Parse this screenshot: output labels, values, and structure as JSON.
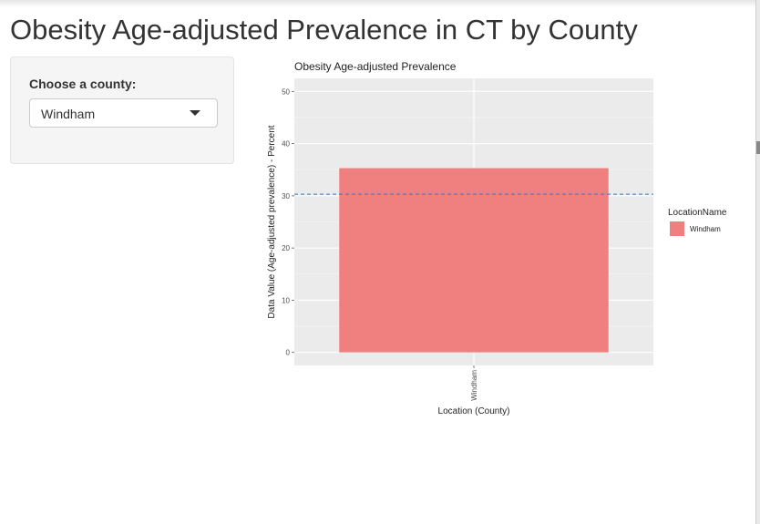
{
  "page": {
    "title": "Obesity Age-adjusted Prevalence in CT by County"
  },
  "sidebar": {
    "label": "Choose a county:",
    "selected": "Windham"
  },
  "chart_data": {
    "type": "bar",
    "title": "Obesity Age-adjusted Prevalence",
    "xlabel": "Location (County)",
    "ylabel": "Data Value (Age-adjusted prevalence) - Percent",
    "categories": [
      "Windham"
    ],
    "values": [
      35.3
    ],
    "ylim": [
      -2.5,
      52.5
    ],
    "yticks": [
      0,
      10,
      20,
      30,
      40,
      50
    ],
    "reference_line": 30.3,
    "bar_color": "#F08080",
    "reference_line_color": "#3377cc",
    "panel_bg": "#EBEBEB",
    "grid": true,
    "legend": {
      "title": "LocationName",
      "position": "right",
      "items": [
        {
          "label": "Windham",
          "color": "#F08080"
        }
      ]
    }
  }
}
